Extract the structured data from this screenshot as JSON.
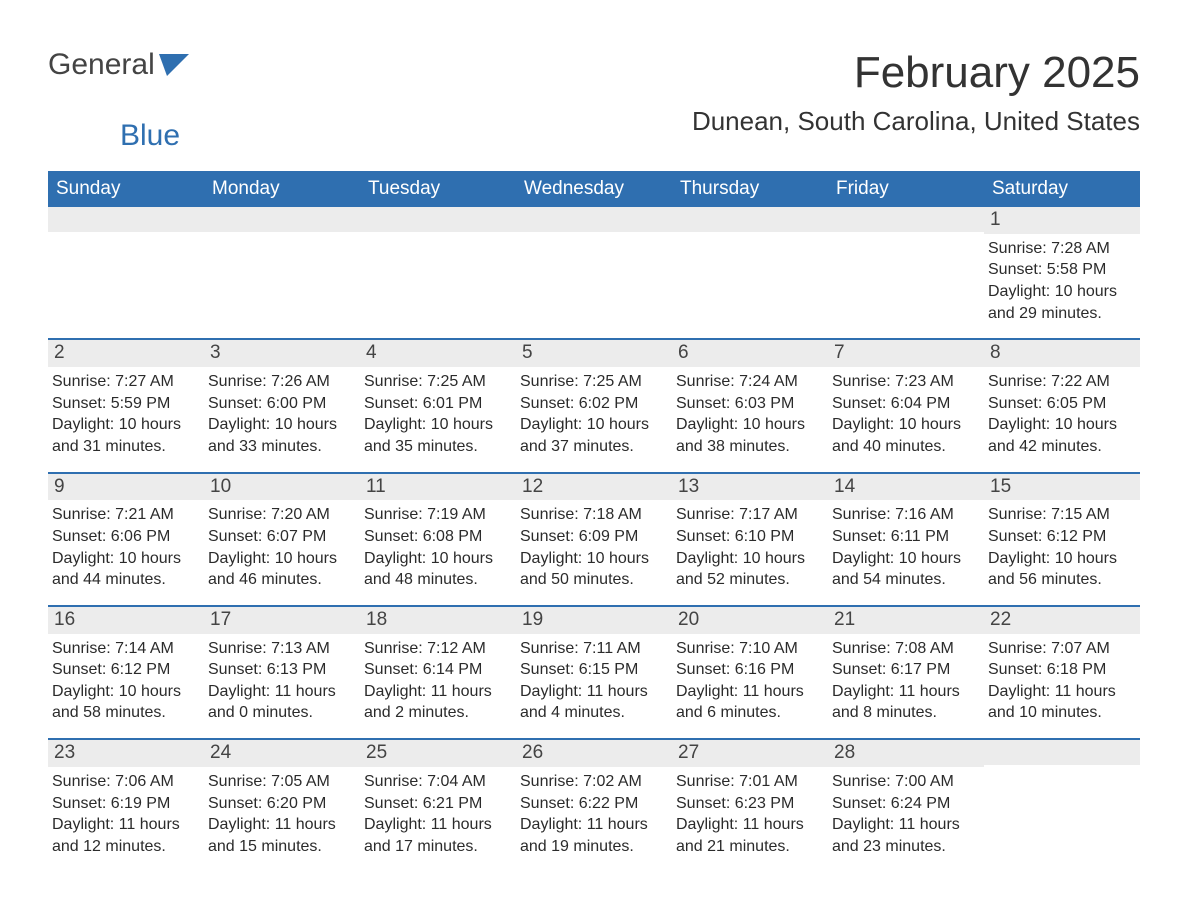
{
  "logo": {
    "text_general": "General",
    "text_blue": "Blue"
  },
  "title": "February 2025",
  "location": "Dunean, South Carolina, United States",
  "colors": {
    "header_bg": "#2f6fb0",
    "header_text": "#ffffff",
    "week_border": "#2f6fb0",
    "daynum_bg": "#ececec",
    "body_text": "#2b2b2b",
    "page_bg": "#ffffff"
  },
  "day_headers": [
    "Sunday",
    "Monday",
    "Tuesday",
    "Wednesday",
    "Thursday",
    "Friday",
    "Saturday"
  ],
  "weeks": [
    [
      {
        "empty": true
      },
      {
        "empty": true
      },
      {
        "empty": true
      },
      {
        "empty": true
      },
      {
        "empty": true
      },
      {
        "empty": true
      },
      {
        "num": "1",
        "sunrise": "Sunrise: 7:28 AM",
        "sunset": "Sunset: 5:58 PM",
        "daylight": "Daylight: 10 hours and 29 minutes."
      }
    ],
    [
      {
        "num": "2",
        "sunrise": "Sunrise: 7:27 AM",
        "sunset": "Sunset: 5:59 PM",
        "daylight": "Daylight: 10 hours and 31 minutes."
      },
      {
        "num": "3",
        "sunrise": "Sunrise: 7:26 AM",
        "sunset": "Sunset: 6:00 PM",
        "daylight": "Daylight: 10 hours and 33 minutes."
      },
      {
        "num": "4",
        "sunrise": "Sunrise: 7:25 AM",
        "sunset": "Sunset: 6:01 PM",
        "daylight": "Daylight: 10 hours and 35 minutes."
      },
      {
        "num": "5",
        "sunrise": "Sunrise: 7:25 AM",
        "sunset": "Sunset: 6:02 PM",
        "daylight": "Daylight: 10 hours and 37 minutes."
      },
      {
        "num": "6",
        "sunrise": "Sunrise: 7:24 AM",
        "sunset": "Sunset: 6:03 PM",
        "daylight": "Daylight: 10 hours and 38 minutes."
      },
      {
        "num": "7",
        "sunrise": "Sunrise: 7:23 AM",
        "sunset": "Sunset: 6:04 PM",
        "daylight": "Daylight: 10 hours and 40 minutes."
      },
      {
        "num": "8",
        "sunrise": "Sunrise: 7:22 AM",
        "sunset": "Sunset: 6:05 PM",
        "daylight": "Daylight: 10 hours and 42 minutes."
      }
    ],
    [
      {
        "num": "9",
        "sunrise": "Sunrise: 7:21 AM",
        "sunset": "Sunset: 6:06 PM",
        "daylight": "Daylight: 10 hours and 44 minutes."
      },
      {
        "num": "10",
        "sunrise": "Sunrise: 7:20 AM",
        "sunset": "Sunset: 6:07 PM",
        "daylight": "Daylight: 10 hours and 46 minutes."
      },
      {
        "num": "11",
        "sunrise": "Sunrise: 7:19 AM",
        "sunset": "Sunset: 6:08 PM",
        "daylight": "Daylight: 10 hours and 48 minutes."
      },
      {
        "num": "12",
        "sunrise": "Sunrise: 7:18 AM",
        "sunset": "Sunset: 6:09 PM",
        "daylight": "Daylight: 10 hours and 50 minutes."
      },
      {
        "num": "13",
        "sunrise": "Sunrise: 7:17 AM",
        "sunset": "Sunset: 6:10 PM",
        "daylight": "Daylight: 10 hours and 52 minutes."
      },
      {
        "num": "14",
        "sunrise": "Sunrise: 7:16 AM",
        "sunset": "Sunset: 6:11 PM",
        "daylight": "Daylight: 10 hours and 54 minutes."
      },
      {
        "num": "15",
        "sunrise": "Sunrise: 7:15 AM",
        "sunset": "Sunset: 6:12 PM",
        "daylight": "Daylight: 10 hours and 56 minutes."
      }
    ],
    [
      {
        "num": "16",
        "sunrise": "Sunrise: 7:14 AM",
        "sunset": "Sunset: 6:12 PM",
        "daylight": "Daylight: 10 hours and 58 minutes."
      },
      {
        "num": "17",
        "sunrise": "Sunrise: 7:13 AM",
        "sunset": "Sunset: 6:13 PM",
        "daylight": "Daylight: 11 hours and 0 minutes."
      },
      {
        "num": "18",
        "sunrise": "Sunrise: 7:12 AM",
        "sunset": "Sunset: 6:14 PM",
        "daylight": "Daylight: 11 hours and 2 minutes."
      },
      {
        "num": "19",
        "sunrise": "Sunrise: 7:11 AM",
        "sunset": "Sunset: 6:15 PM",
        "daylight": "Daylight: 11 hours and 4 minutes."
      },
      {
        "num": "20",
        "sunrise": "Sunrise: 7:10 AM",
        "sunset": "Sunset: 6:16 PM",
        "daylight": "Daylight: 11 hours and 6 minutes."
      },
      {
        "num": "21",
        "sunrise": "Sunrise: 7:08 AM",
        "sunset": "Sunset: 6:17 PM",
        "daylight": "Daylight: 11 hours and 8 minutes."
      },
      {
        "num": "22",
        "sunrise": "Sunrise: 7:07 AM",
        "sunset": "Sunset: 6:18 PM",
        "daylight": "Daylight: 11 hours and 10 minutes."
      }
    ],
    [
      {
        "num": "23",
        "sunrise": "Sunrise: 7:06 AM",
        "sunset": "Sunset: 6:19 PM",
        "daylight": "Daylight: 11 hours and 12 minutes."
      },
      {
        "num": "24",
        "sunrise": "Sunrise: 7:05 AM",
        "sunset": "Sunset: 6:20 PM",
        "daylight": "Daylight: 11 hours and 15 minutes."
      },
      {
        "num": "25",
        "sunrise": "Sunrise: 7:04 AM",
        "sunset": "Sunset: 6:21 PM",
        "daylight": "Daylight: 11 hours and 17 minutes."
      },
      {
        "num": "26",
        "sunrise": "Sunrise: 7:02 AM",
        "sunset": "Sunset: 6:22 PM",
        "daylight": "Daylight: 11 hours and 19 minutes."
      },
      {
        "num": "27",
        "sunrise": "Sunrise: 7:01 AM",
        "sunset": "Sunset: 6:23 PM",
        "daylight": "Daylight: 11 hours and 21 minutes."
      },
      {
        "num": "28",
        "sunrise": "Sunrise: 7:00 AM",
        "sunset": "Sunset: 6:24 PM",
        "daylight": "Daylight: 11 hours and 23 minutes."
      },
      {
        "empty": true
      }
    ]
  ]
}
